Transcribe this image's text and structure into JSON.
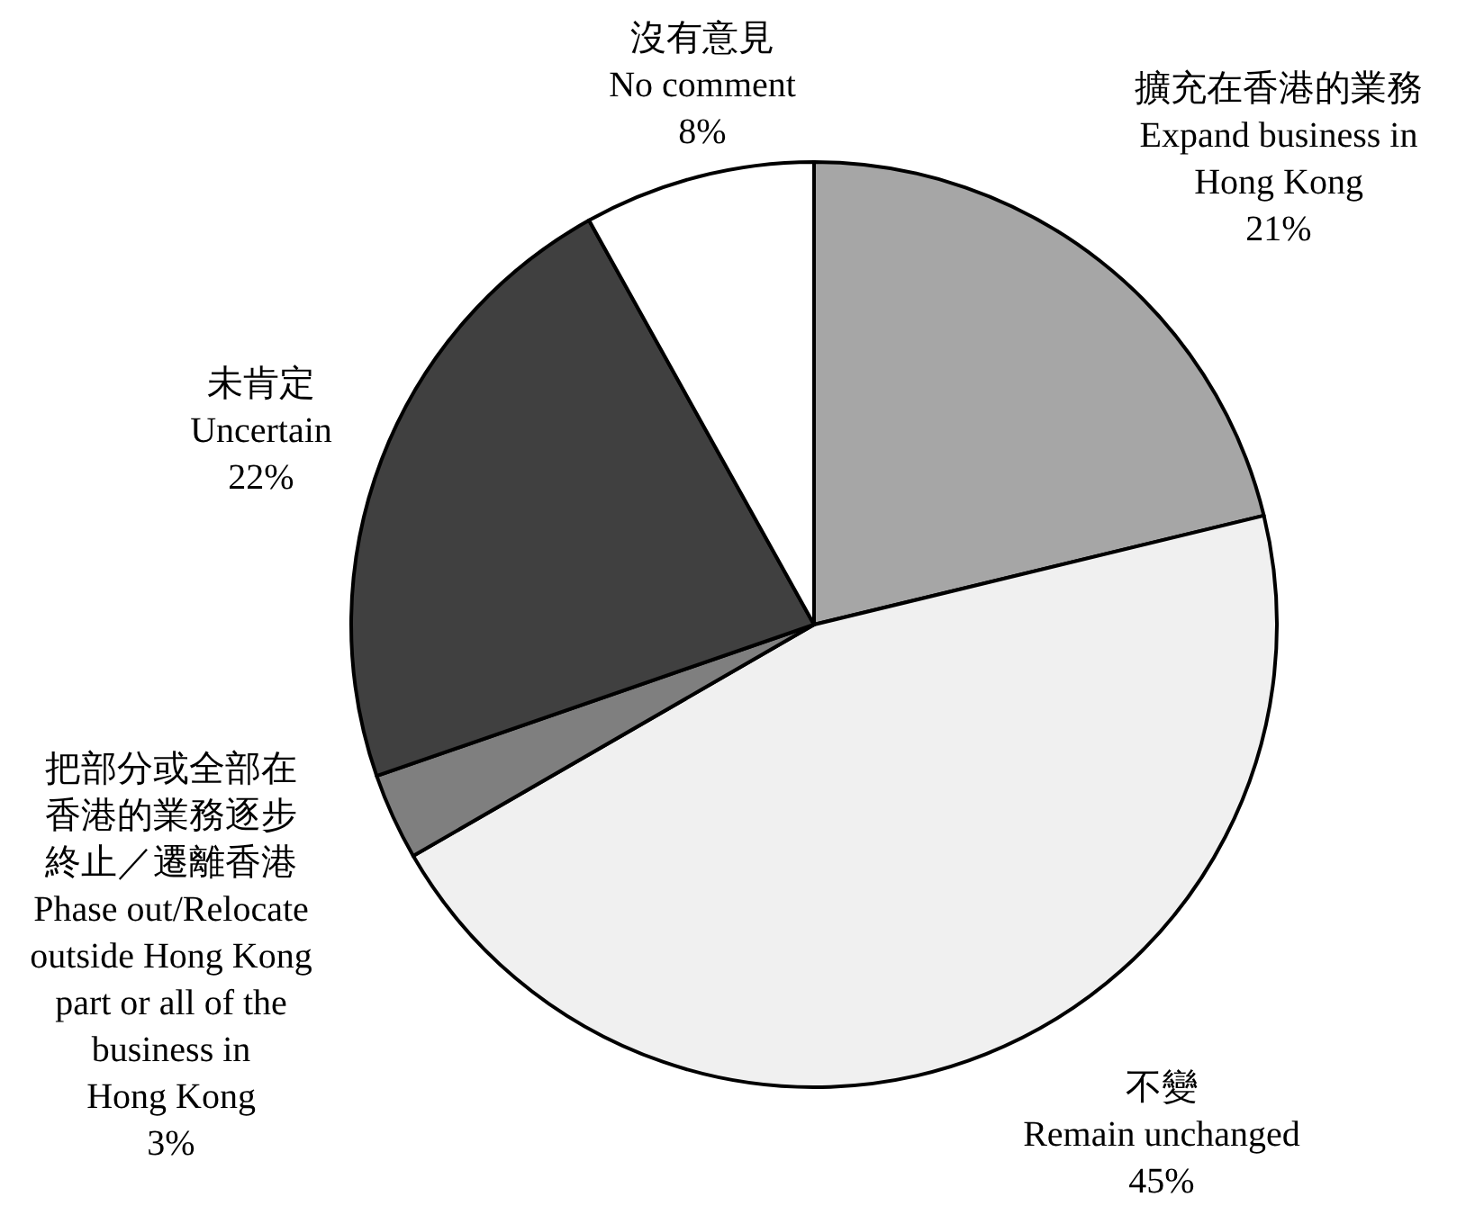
{
  "chart_data": {
    "type": "pie",
    "categories": [
      "擴充在香港的業務 Expand business in Hong Kong",
      "不變 Remain unchanged",
      "把部分或全部在香港的業務逐步終止／遷離香港 Phase out/Relocate outside Hong Kong part or all of the business in\nHong Kong",
      "未肯定 Uncertain",
      "沒有意見 No comment"
    ],
    "values": [
      21,
      45,
      3,
      22,
      8
    ],
    "colors": [
      "#a6a6a6",
      "#f0f0f0",
      "#7f7f7f",
      "#404040",
      "#ffffff"
    ],
    "value_labels": [
      "21%",
      "45%",
      "3%",
      "22%",
      "8%"
    ]
  }
}
